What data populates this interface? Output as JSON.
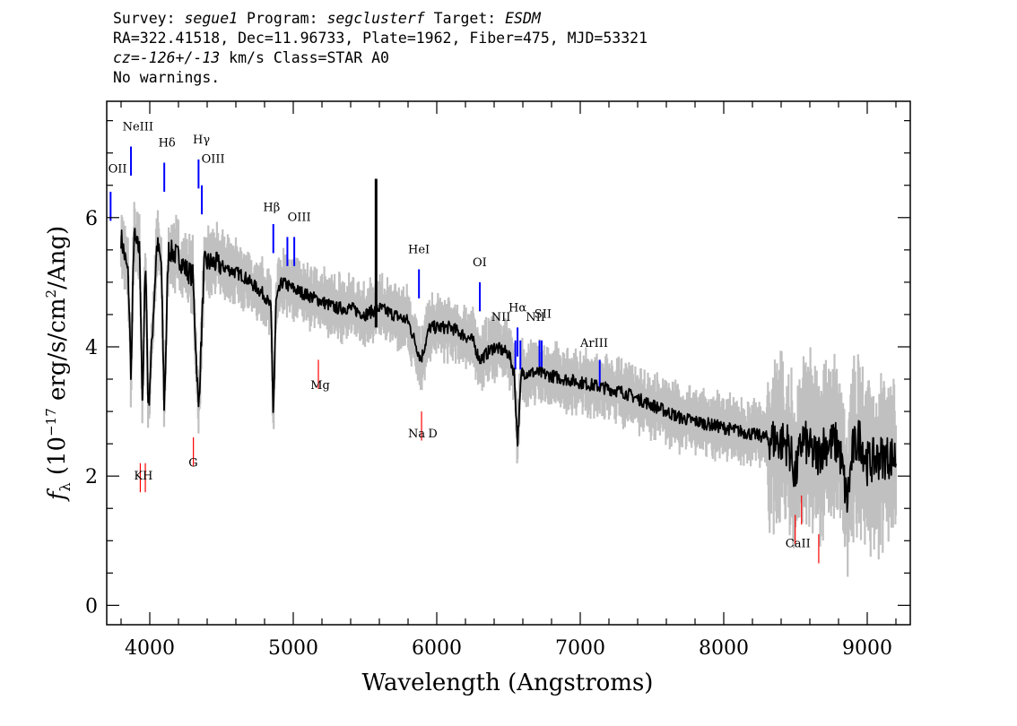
{
  "header": {
    "line1": {
      "survey_label": "Survey: ",
      "survey": "segue1",
      "program_label": " Program: ",
      "program": "segclusterf",
      "target_label": " Target: ",
      "target": "ESDM"
    },
    "line2": "RA=322.41518, Dec=11.96733, Plate=1962, Fiber=475, MJD=53321",
    "line3": {
      "cz_label": "cz=",
      "cz_value": "-126+/-13",
      "cz_unit": " km/s ",
      "class_label": "Class=",
      "class_value": "STAR A0"
    },
    "line4": "No warnings."
  },
  "chart_data": {
    "type": "line",
    "title": "",
    "xlabel": "Wavelength (Angstroms)",
    "ylabel": "f_λ (10^-17 erg/s/cm^2/Ang)",
    "xlim": [
      3700,
      9300
    ],
    "ylim": [
      -0.3,
      7.8
    ],
    "x_ticks": [
      4000,
      5000,
      6000,
      7000,
      8000,
      9000
    ],
    "x_tick_labels": [
      "4000",
      "5000",
      "6000",
      "7000",
      "8000",
      "9000"
    ],
    "y_ticks": [
      0,
      2,
      4,
      6
    ],
    "y_tick_labels": [
      "0",
      "2",
      "4",
      "6"
    ],
    "grid": false,
    "series": [
      {
        "role": "spectrum-smoothed",
        "color": "#000000",
        "x": [
          3800,
          3850,
          3870,
          3890,
          3900,
          3930,
          3950,
          3970,
          3990,
          4050,
          4080,
          4101,
          4130,
          4200,
          4250,
          4300,
          4340,
          4380,
          4450,
          4550,
          4650,
          4750,
          4800,
          4845,
          4861,
          4880,
          4920,
          5000,
          5100,
          5200,
          5300,
          5400,
          5500,
          5600,
          5700,
          5800,
          5890,
          5950,
          6100,
          6250,
          6300,
          6400,
          6500,
          6540,
          6563,
          6590,
          6700,
          6900,
          7100,
          7300,
          7500,
          7700,
          7900,
          8100,
          8300,
          8450,
          8500,
          8550,
          8600,
          8650,
          8700,
          8800,
          8860,
          8900,
          8950,
          9000,
          9100,
          9200
        ],
        "y": [
          5.7,
          5.1,
          3.5,
          5.8,
          5.6,
          5.5,
          3.0,
          5.5,
          3.0,
          5.6,
          5.3,
          3.0,
          5.5,
          5.4,
          5.2,
          5.1,
          3.0,
          5.3,
          5.3,
          5.2,
          5.1,
          4.9,
          4.8,
          4.6,
          2.9,
          4.7,
          5.0,
          4.9,
          4.8,
          4.7,
          4.6,
          4.6,
          4.5,
          4.6,
          4.5,
          4.4,
          3.8,
          4.3,
          4.3,
          4.1,
          3.8,
          4.0,
          3.9,
          3.6,
          2.5,
          3.6,
          3.6,
          3.5,
          3.4,
          3.3,
          3.1,
          2.9,
          2.8,
          2.7,
          2.6,
          2.5,
          2.0,
          2.6,
          2.4,
          2.3,
          2.5,
          2.5,
          1.6,
          2.4,
          2.6,
          2.2,
          2.3,
          2.3
        ]
      }
    ],
    "emission_lines": [
      {
        "label": "OII",
        "wavelength": 3727,
        "y": 6.4
      },
      {
        "label": "NeIII",
        "wavelength": 3869,
        "y": 7.1
      },
      {
        "label": "Hδ",
        "wavelength": 4101,
        "y": 6.85
      },
      {
        "label": "Hγ",
        "wavelength": 4340,
        "y": 6.9
      },
      {
        "label": "OIII",
        "wavelength": 4363,
        "y": 6.5
      },
      {
        "label": "Hβ",
        "wavelength": 4861,
        "y": 5.9
      },
      {
        "label": "OIII",
        "wavelength": 4959,
        "y": 5.7
      },
      {
        "label": "OIII",
        "wavelength": 5007,
        "y": 5.7
      },
      {
        "label": "HeI",
        "wavelength": 5876,
        "y": 5.2
      },
      {
        "label": "OI",
        "wavelength": 6300,
        "y": 5.0
      },
      {
        "label": "NII",
        "wavelength": 6548,
        "y": 4.1
      },
      {
        "label": "Hα",
        "wavelength": 6563,
        "y": 4.3
      },
      {
        "label": "NII",
        "wavelength": 6583,
        "y": 4.1
      },
      {
        "label": "SII",
        "wavelength": 6716,
        "y": 4.1
      },
      {
        "label": "SII",
        "wavelength": 6731,
        "y": 4.1
      },
      {
        "label": "ArIII",
        "wavelength": 7136,
        "y": 3.8
      }
    ],
    "absorption_lines": [
      {
        "label": "K",
        "wavelength": 3934,
        "y": 2.2
      },
      {
        "label": "H",
        "wavelength": 3969,
        "y": 2.2
      },
      {
        "label": "G",
        "wavelength": 4304,
        "y": 2.6
      },
      {
        "label": "Mg",
        "wavelength": 5175,
        "y": 3.8
      },
      {
        "label": "Na",
        "wavelength": 5894,
        "y": 3.0
      },
      {
        "label": "CaII",
        "wavelength": 8498,
        "y": 1.4
      },
      {
        "label": "CaII",
        "wavelength": 8542,
        "y": 1.7
      },
      {
        "label": "CaII",
        "wavelength": 8662,
        "y": 1.1
      }
    ],
    "labels": [
      {
        "text": "OII",
        "wavelength": 3710,
        "y": 6.7
      },
      {
        "text": "NeIII",
        "wavelength": 3810,
        "y": 7.35
      },
      {
        "text": "Hδ",
        "wavelength": 4060,
        "y": 7.1
      },
      {
        "text": "Hγ",
        "wavelength": 4300,
        "y": 7.15
      },
      {
        "text": "OIII",
        "wavelength": 4360,
        "y": 6.85
      },
      {
        "text": "Hβ",
        "wavelength": 4790,
        "y": 6.1
      },
      {
        "text": "OIII",
        "wavelength": 4960,
        "y": 5.95
      },
      {
        "text": "HeI",
        "wavelength": 5800,
        "y": 5.45
      },
      {
        "text": "OI",
        "wavelength": 6250,
        "y": 5.25
      },
      {
        "text": "NII",
        "wavelength": 6380,
        "y": 4.4
      },
      {
        "text": "Hα",
        "wavelength": 6500,
        "y": 4.55
      },
      {
        "text": "NII",
        "wavelength": 6620,
        "y": 4.4
      },
      {
        "text": "SII",
        "wavelength": 6680,
        "y": 4.45
      },
      {
        "text": "ArIII",
        "wavelength": 7000,
        "y": 4.0
      },
      {
        "text": "K",
        "wavelength": 3890,
        "y": 1.95
      },
      {
        "text": "H",
        "wavelength": 3950,
        "y": 1.95
      },
      {
        "text": "G",
        "wavelength": 4270,
        "y": 2.15
      },
      {
        "text": "Mg",
        "wavelength": 5120,
        "y": 3.35
      },
      {
        "text": "Na",
        "wavelength": 5800,
        "y": 2.6
      },
      {
        "text": "D",
        "wavelength": 5940,
        "y": 2.6
      },
      {
        "text": "CaII",
        "wavelength": 8430,
        "y": 0.9
      }
    ],
    "colors": {
      "spectrum": "#000000",
      "error_band": "#c0c0c0",
      "emission": "#0000ff",
      "absorption": "#ff0000"
    }
  }
}
